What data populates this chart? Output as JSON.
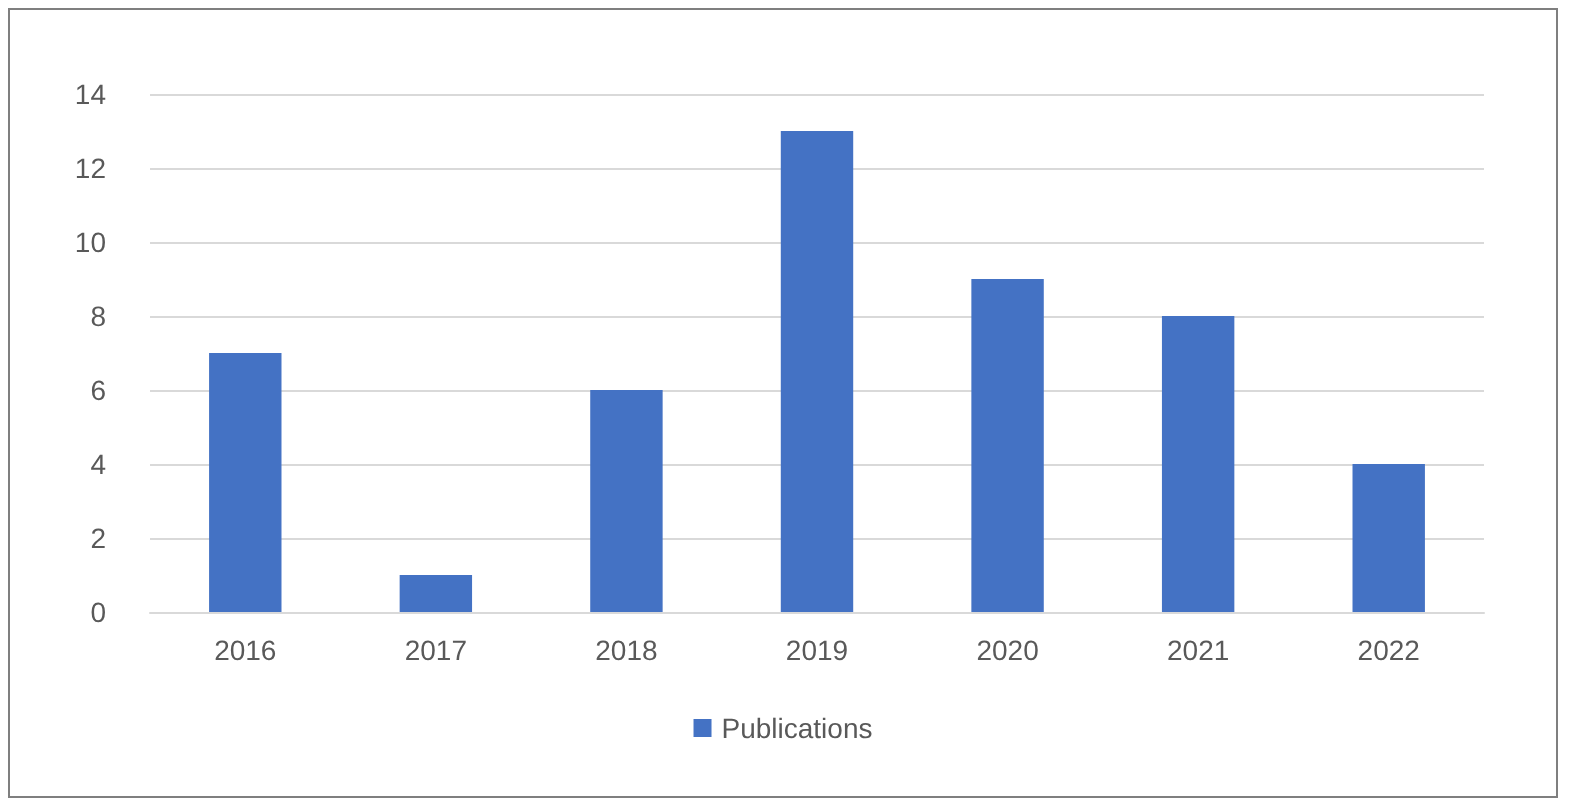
{
  "chart_data": {
    "type": "bar",
    "categories": [
      "2016",
      "2017",
      "2018",
      "2019",
      "2020",
      "2021",
      "2022"
    ],
    "series": [
      {
        "name": "Publications",
        "color": "#4472c4",
        "values": [
          7,
          1,
          6,
          13,
          9,
          8,
          4
        ]
      }
    ],
    "ylim": [
      0,
      14
    ],
    "yticks": [
      0,
      2,
      4,
      6,
      8,
      10,
      12,
      14
    ],
    "grid": "y",
    "legend": "bottom"
  }
}
